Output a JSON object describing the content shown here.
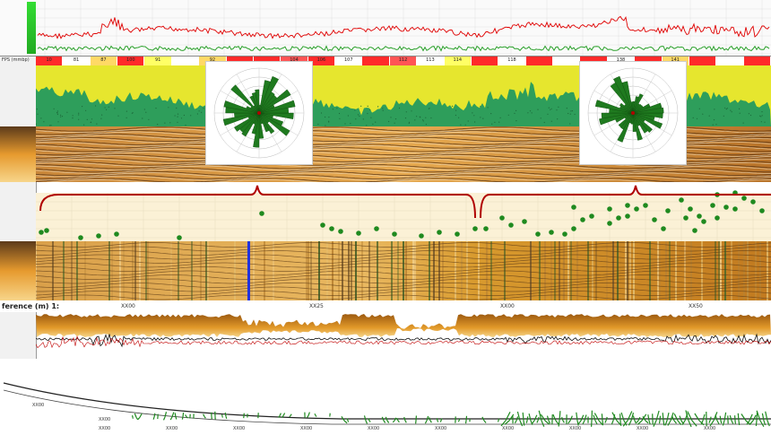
{
  "header": {
    "band_label": "FPS (mmbp)",
    "comparison_title": "ference (m) 1:"
  },
  "band_cells": [
    {
      "label": "10",
      "color": "#ff2a2a"
    },
    {
      "label": "81",
      "color": "#ffffff"
    },
    {
      "label": "87",
      "color": "#ffd966"
    },
    {
      "label": "100",
      "color": "#ff2a2a"
    },
    {
      "label": "91",
      "color": "#ffff66"
    },
    {
      "label": "",
      "color": "#ffffff"
    },
    {
      "label": "92",
      "color": "#ffd966"
    },
    {
      "label": "",
      "color": "#ff2a2a"
    },
    {
      "label": "",
      "color": "#ff2a2a"
    },
    {
      "label": "104",
      "color": "#ff5555"
    },
    {
      "label": "106",
      "color": "#ff2a2a"
    },
    {
      "label": "107",
      "color": "#ffffff"
    },
    {
      "label": "",
      "color": "#ff2a2a"
    },
    {
      "label": "112",
      "color": "#ff5555"
    },
    {
      "label": "113",
      "color": "#ffffff"
    },
    {
      "label": "114",
      "color": "#ffff66"
    },
    {
      "label": "",
      "color": "#ff2a2a"
    },
    {
      "label": "118",
      "color": "#ffffff"
    },
    {
      "label": "",
      "color": "#ff2a2a"
    },
    {
      "label": "",
      "color": "#ffffff"
    },
    {
      "label": "",
      "color": "#ff2a2a"
    },
    {
      "label": "138",
      "color": "#ffffff"
    },
    {
      "label": "",
      "color": "#ff2a2a"
    },
    {
      "label": "141",
      "color": "#ffd966"
    },
    {
      "label": "",
      "color": "#ff2a2a"
    },
    {
      "label": "",
      "color": "#ffffff"
    },
    {
      "label": "",
      "color": "#ff2a2a"
    }
  ],
  "depth_ticks": [
    "XX00",
    "XX25",
    "XX00",
    "XX50"
  ],
  "bottom_ticks": [
    "XX00",
    "XX00",
    "XX00",
    "XX00",
    "XX00",
    "XX00",
    "XX00",
    "XX00",
    "XX00",
    "XX00",
    "XX00",
    "XX00"
  ],
  "trajectory_labels": [
    "XX00",
    "XX00"
  ],
  "colors": {
    "gamma": "#e00000",
    "fill_green": "#2e9e5b",
    "fill_yellow": "#e6e62e",
    "scatter": "#1f8a1f",
    "bracket": "#b00000",
    "pale": "#fbf1d6"
  },
  "icons": [
    "rose-diagram-icon",
    "rose-diagram-icon"
  ]
}
